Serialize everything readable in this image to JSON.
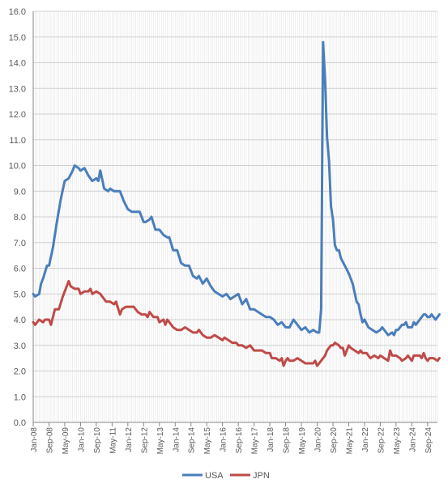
{
  "chart_data": {
    "type": "line",
    "title": "",
    "xlabel": "",
    "ylabel": "",
    "ylim": [
      0,
      16
    ],
    "y_ticks": [
      "0.0",
      "1.0",
      "2.0",
      "3.0",
      "4.0",
      "5.0",
      "6.0",
      "7.0",
      "8.0",
      "9.0",
      "10.0",
      "11.0",
      "12.0",
      "13.0",
      "14.0",
      "15.0",
      "16.0"
    ],
    "x_range": [
      "Jan-08",
      "Feb-25"
    ],
    "x_tick_labels": [
      "Jan-08",
      "Sep-08",
      "May-09",
      "Jan-10",
      "Sep-10",
      "May-11",
      "Jan-12",
      "Sep-12",
      "May-13",
      "Jan-14",
      "Sep-14",
      "May-15",
      "Jan-16",
      "Sep-16",
      "May-17",
      "Jan-18",
      "Sep-18",
      "May-19",
      "Jan-20",
      "Sep-20",
      "May-21",
      "Jan-22",
      "Sep-22",
      "May-23",
      "Jan-24",
      "Sep-24"
    ],
    "grid": "horizontal and vertical",
    "legend_position": "bottom",
    "series": [
      {
        "name": "USA",
        "color": "#4a7ebb",
        "points": [
          [
            "Jan-08",
            5.0
          ],
          [
            "Feb-08",
            4.9
          ],
          [
            "Apr-08",
            5.0
          ],
          [
            "May-08",
            5.4
          ],
          [
            "Jun-08",
            5.6
          ],
          [
            "Aug-08",
            6.1
          ],
          [
            "Sep-08",
            6.1
          ],
          [
            "Nov-08",
            6.8
          ],
          [
            "Jan-09",
            7.8
          ],
          [
            "Mar-09",
            8.7
          ],
          [
            "May-09",
            9.4
          ],
          [
            "Jul-09",
            9.5
          ],
          [
            "Sep-09",
            9.8
          ],
          [
            "Oct-09",
            10.0
          ],
          [
            "Dec-09",
            9.9
          ],
          [
            "Jan-10",
            9.8
          ],
          [
            "Mar-10",
            9.9
          ],
          [
            "May-10",
            9.6
          ],
          [
            "Jul-10",
            9.4
          ],
          [
            "Sep-10",
            9.5
          ],
          [
            "Oct-10",
            9.4
          ],
          [
            "Nov-10",
            9.8
          ],
          [
            "Jan-11",
            9.1
          ],
          [
            "Mar-11",
            9.0
          ],
          [
            "Apr-11",
            9.1
          ],
          [
            "Jun-11",
            9.0
          ],
          [
            "Jul-11",
            9.0
          ],
          [
            "Sep-11",
            9.0
          ],
          [
            "Nov-11",
            8.6
          ],
          [
            "Jan-12",
            8.3
          ],
          [
            "Mar-12",
            8.2
          ],
          [
            "May-12",
            8.2
          ],
          [
            "Jul-12",
            8.2
          ],
          [
            "Sep-12",
            7.8
          ],
          [
            "Oct-12",
            7.8
          ],
          [
            "Dec-12",
            7.9
          ],
          [
            "Jan-13",
            8.0
          ],
          [
            "Mar-13",
            7.5
          ],
          [
            "May-13",
            7.5
          ],
          [
            "Jul-13",
            7.3
          ],
          [
            "Sep-13",
            7.2
          ],
          [
            "Oct-13",
            7.2
          ],
          [
            "Dec-13",
            6.7
          ],
          [
            "Feb-14",
            6.7
          ],
          [
            "Apr-14",
            6.2
          ],
          [
            "Jun-14",
            6.1
          ],
          [
            "Aug-14",
            6.1
          ],
          [
            "Oct-14",
            5.7
          ],
          [
            "Dec-14",
            5.6
          ],
          [
            "Jan-15",
            5.7
          ],
          [
            "Mar-15",
            5.4
          ],
          [
            "May-15",
            5.6
          ],
          [
            "Jul-15",
            5.3
          ],
          [
            "Sep-15",
            5.1
          ],
          [
            "Nov-15",
            5.0
          ],
          [
            "Jan-16",
            4.9
          ],
          [
            "Mar-16",
            5.0
          ],
          [
            "May-16",
            4.8
          ],
          [
            "Jul-16",
            4.9
          ],
          [
            "Sep-16",
            5.0
          ],
          [
            "Nov-16",
            4.6
          ],
          [
            "Jan-17",
            4.8
          ],
          [
            "Mar-17",
            4.4
          ],
          [
            "May-17",
            4.4
          ],
          [
            "Jul-17",
            4.3
          ],
          [
            "Sep-17",
            4.2
          ],
          [
            "Nov-17",
            4.1
          ],
          [
            "Jan-18",
            4.1
          ],
          [
            "Mar-18",
            4.0
          ],
          [
            "May-18",
            3.8
          ],
          [
            "Jul-18",
            3.9
          ],
          [
            "Sep-18",
            3.7
          ],
          [
            "Nov-18",
            3.7
          ],
          [
            "Jan-19",
            4.0
          ],
          [
            "Mar-19",
            3.8
          ],
          [
            "May-19",
            3.6
          ],
          [
            "Jul-19",
            3.7
          ],
          [
            "Sep-19",
            3.5
          ],
          [
            "Nov-19",
            3.6
          ],
          [
            "Jan-20",
            3.5
          ],
          [
            "Feb-20",
            3.5
          ],
          [
            "Mar-20",
            4.4
          ],
          [
            "Apr-20",
            14.8
          ],
          [
            "May-20",
            13.3
          ],
          [
            "Jun-20",
            11.1
          ],
          [
            "Jul-20",
            10.2
          ],
          [
            "Aug-20",
            8.4
          ],
          [
            "Sep-20",
            7.9
          ],
          [
            "Oct-20",
            6.9
          ],
          [
            "Nov-20",
            6.7
          ],
          [
            "Dec-20",
            6.7
          ],
          [
            "Jan-21",
            6.4
          ],
          [
            "Mar-21",
            6.1
          ],
          [
            "May-21",
            5.8
          ],
          [
            "Jul-21",
            5.4
          ],
          [
            "Sep-21",
            4.7
          ],
          [
            "Oct-21",
            4.6
          ],
          [
            "Nov-21",
            4.2
          ],
          [
            "Dec-21",
            3.9
          ],
          [
            "Jan-22",
            4.0
          ],
          [
            "Mar-22",
            3.7
          ],
          [
            "May-22",
            3.6
          ],
          [
            "Jul-22",
            3.5
          ],
          [
            "Sep-22",
            3.6
          ],
          [
            "Oct-22",
            3.7
          ],
          [
            "Dec-22",
            3.5
          ],
          [
            "Jan-23",
            3.4
          ],
          [
            "Mar-23",
            3.5
          ],
          [
            "Apr-23",
            3.4
          ],
          [
            "May-23",
            3.6
          ],
          [
            "Jun-23",
            3.6
          ],
          [
            "Aug-23",
            3.8
          ],
          [
            "Sep-23",
            3.8
          ],
          [
            "Oct-23",
            3.9
          ],
          [
            "Nov-23",
            3.7
          ],
          [
            "Jan-24",
            3.7
          ],
          [
            "Feb-24",
            3.9
          ],
          [
            "Mar-24",
            3.8
          ],
          [
            "Apr-24",
            3.9
          ],
          [
            "Jun-24",
            4.1
          ],
          [
            "Jul-24",
            4.2
          ],
          [
            "Aug-24",
            4.2
          ],
          [
            "Sep-24",
            4.1
          ],
          [
            "Oct-24",
            4.1
          ],
          [
            "Nov-24",
            4.2
          ],
          [
            "Dec-24",
            4.1
          ],
          [
            "Jan-25",
            4.0
          ],
          [
            "Feb-25",
            4.1
          ],
          [
            "Mar-25",
            4.2
          ]
        ]
      },
      {
        "name": "JPN",
        "color": "#be4b48",
        "points": [
          [
            "Jan-08",
            3.9
          ],
          [
            "Feb-08",
            3.8
          ],
          [
            "Apr-08",
            4.0
          ],
          [
            "Jun-08",
            3.9
          ],
          [
            "Jul-08",
            4.0
          ],
          [
            "Sep-08",
            4.0
          ],
          [
            "Oct-08",
            3.8
          ],
          [
            "Dec-08",
            4.4
          ],
          [
            "Feb-09",
            4.4
          ],
          [
            "Apr-09",
            4.9
          ],
          [
            "Jun-09",
            5.3
          ],
          [
            "Jul-09",
            5.5
          ],
          [
            "Aug-09",
            5.3
          ],
          [
            "Oct-09",
            5.2
          ],
          [
            "Dec-09",
            5.2
          ],
          [
            "Jan-10",
            5.0
          ],
          [
            "Mar-10",
            5.1
          ],
          [
            "May-10",
            5.1
          ],
          [
            "Jun-10",
            5.2
          ],
          [
            "Jul-10",
            5.0
          ],
          [
            "Sep-10",
            5.1
          ],
          [
            "Nov-10",
            5.0
          ],
          [
            "Jan-11",
            4.8
          ],
          [
            "Feb-11",
            4.7
          ],
          [
            "Apr-11",
            4.7
          ],
          [
            "Jun-11",
            4.6
          ],
          [
            "Jul-11",
            4.7
          ],
          [
            "Sep-11",
            4.2
          ],
          [
            "Oct-11",
            4.4
          ],
          [
            "Dec-11",
            4.5
          ],
          [
            "Feb-12",
            4.5
          ],
          [
            "Apr-12",
            4.5
          ],
          [
            "Jun-12",
            4.3
          ],
          [
            "Aug-12",
            4.2
          ],
          [
            "Oct-12",
            4.2
          ],
          [
            "Nov-12",
            4.1
          ],
          [
            "Dec-12",
            4.3
          ],
          [
            "Feb-13",
            4.1
          ],
          [
            "Apr-13",
            4.1
          ],
          [
            "May-13",
            3.9
          ],
          [
            "Jul-13",
            4.0
          ],
          [
            "Aug-13",
            3.8
          ],
          [
            "Sep-13",
            4.0
          ],
          [
            "Oct-13",
            3.9
          ],
          [
            "Dec-13",
            3.7
          ],
          [
            "Feb-14",
            3.6
          ],
          [
            "Apr-14",
            3.6
          ],
          [
            "Jun-14",
            3.7
          ],
          [
            "Aug-14",
            3.6
          ],
          [
            "Oct-14",
            3.5
          ],
          [
            "Dec-14",
            3.5
          ],
          [
            "Jan-15",
            3.6
          ],
          [
            "Mar-15",
            3.4
          ],
          [
            "May-15",
            3.3
          ],
          [
            "Jul-15",
            3.3
          ],
          [
            "Sep-15",
            3.4
          ],
          [
            "Nov-15",
            3.3
          ],
          [
            "Jan-16",
            3.2
          ],
          [
            "Feb-16",
            3.3
          ],
          [
            "Apr-16",
            3.2
          ],
          [
            "Jun-16",
            3.1
          ],
          [
            "Aug-16",
            3.1
          ],
          [
            "Sep-16",
            3.0
          ],
          [
            "Nov-16",
            3.0
          ],
          [
            "Jan-17",
            2.9
          ],
          [
            "Mar-17",
            3.0
          ],
          [
            "May-17",
            2.8
          ],
          [
            "Jul-17",
            2.8
          ],
          [
            "Sep-17",
            2.8
          ],
          [
            "Nov-17",
            2.7
          ],
          [
            "Jan-18",
            2.7
          ],
          [
            "Feb-18",
            2.5
          ],
          [
            "Apr-18",
            2.5
          ],
          [
            "Jun-18",
            2.4
          ],
          [
            "Jul-18",
            2.5
          ],
          [
            "Aug-18",
            2.2
          ],
          [
            "Sep-18",
            2.4
          ],
          [
            "Oct-18",
            2.5
          ],
          [
            "Nov-18",
            2.4
          ],
          [
            "Jan-19",
            2.4
          ],
          [
            "Mar-19",
            2.5
          ],
          [
            "May-19",
            2.4
          ],
          [
            "Jul-19",
            2.3
          ],
          [
            "Sep-19",
            2.3
          ],
          [
            "Nov-19",
            2.3
          ],
          [
            "Dec-19",
            2.4
          ],
          [
            "Jan-20",
            2.2
          ],
          [
            "Mar-20",
            2.4
          ],
          [
            "May-20",
            2.6
          ],
          [
            "Jun-20",
            2.8
          ],
          [
            "Jul-20",
            2.9
          ],
          [
            "Aug-20",
            3.0
          ],
          [
            "Sep-20",
            3.0
          ],
          [
            "Oct-20",
            3.1
          ],
          [
            "Dec-20",
            3.0
          ],
          [
            "Jan-21",
            2.9
          ],
          [
            "Feb-21",
            2.9
          ],
          [
            "Mar-21",
            2.6
          ],
          [
            "Apr-21",
            2.8
          ],
          [
            "May-21",
            3.0
          ],
          [
            "Jun-21",
            2.9
          ],
          [
            "Aug-21",
            2.8
          ],
          [
            "Oct-21",
            2.7
          ],
          [
            "Nov-21",
            2.8
          ],
          [
            "Dec-21",
            2.7
          ],
          [
            "Feb-22",
            2.7
          ],
          [
            "Apr-22",
            2.5
          ],
          [
            "Jun-22",
            2.6
          ],
          [
            "Aug-22",
            2.5
          ],
          [
            "Sep-22",
            2.6
          ],
          [
            "Nov-22",
            2.5
          ],
          [
            "Jan-23",
            2.4
          ],
          [
            "Feb-23",
            2.8
          ],
          [
            "Mar-23",
            2.6
          ],
          [
            "Apr-23",
            2.6
          ],
          [
            "May-23",
            2.6
          ],
          [
            "Jul-23",
            2.5
          ],
          [
            "Aug-23",
            2.4
          ],
          [
            "Oct-23",
            2.5
          ],
          [
            "Nov-23",
            2.6
          ],
          [
            "Jan-24",
            2.4
          ],
          [
            "Feb-24",
            2.6
          ],
          [
            "Apr-24",
            2.6
          ],
          [
            "May-24",
            2.6
          ],
          [
            "Jun-24",
            2.5
          ],
          [
            "Jul-24",
            2.7
          ],
          [
            "Aug-24",
            2.5
          ],
          [
            "Sep-24",
            2.4
          ],
          [
            "Oct-24",
            2.5
          ],
          [
            "Dec-24",
            2.5
          ],
          [
            "Feb-25",
            2.4
          ],
          [
            "Mar-25",
            2.5
          ]
        ]
      }
    ]
  }
}
